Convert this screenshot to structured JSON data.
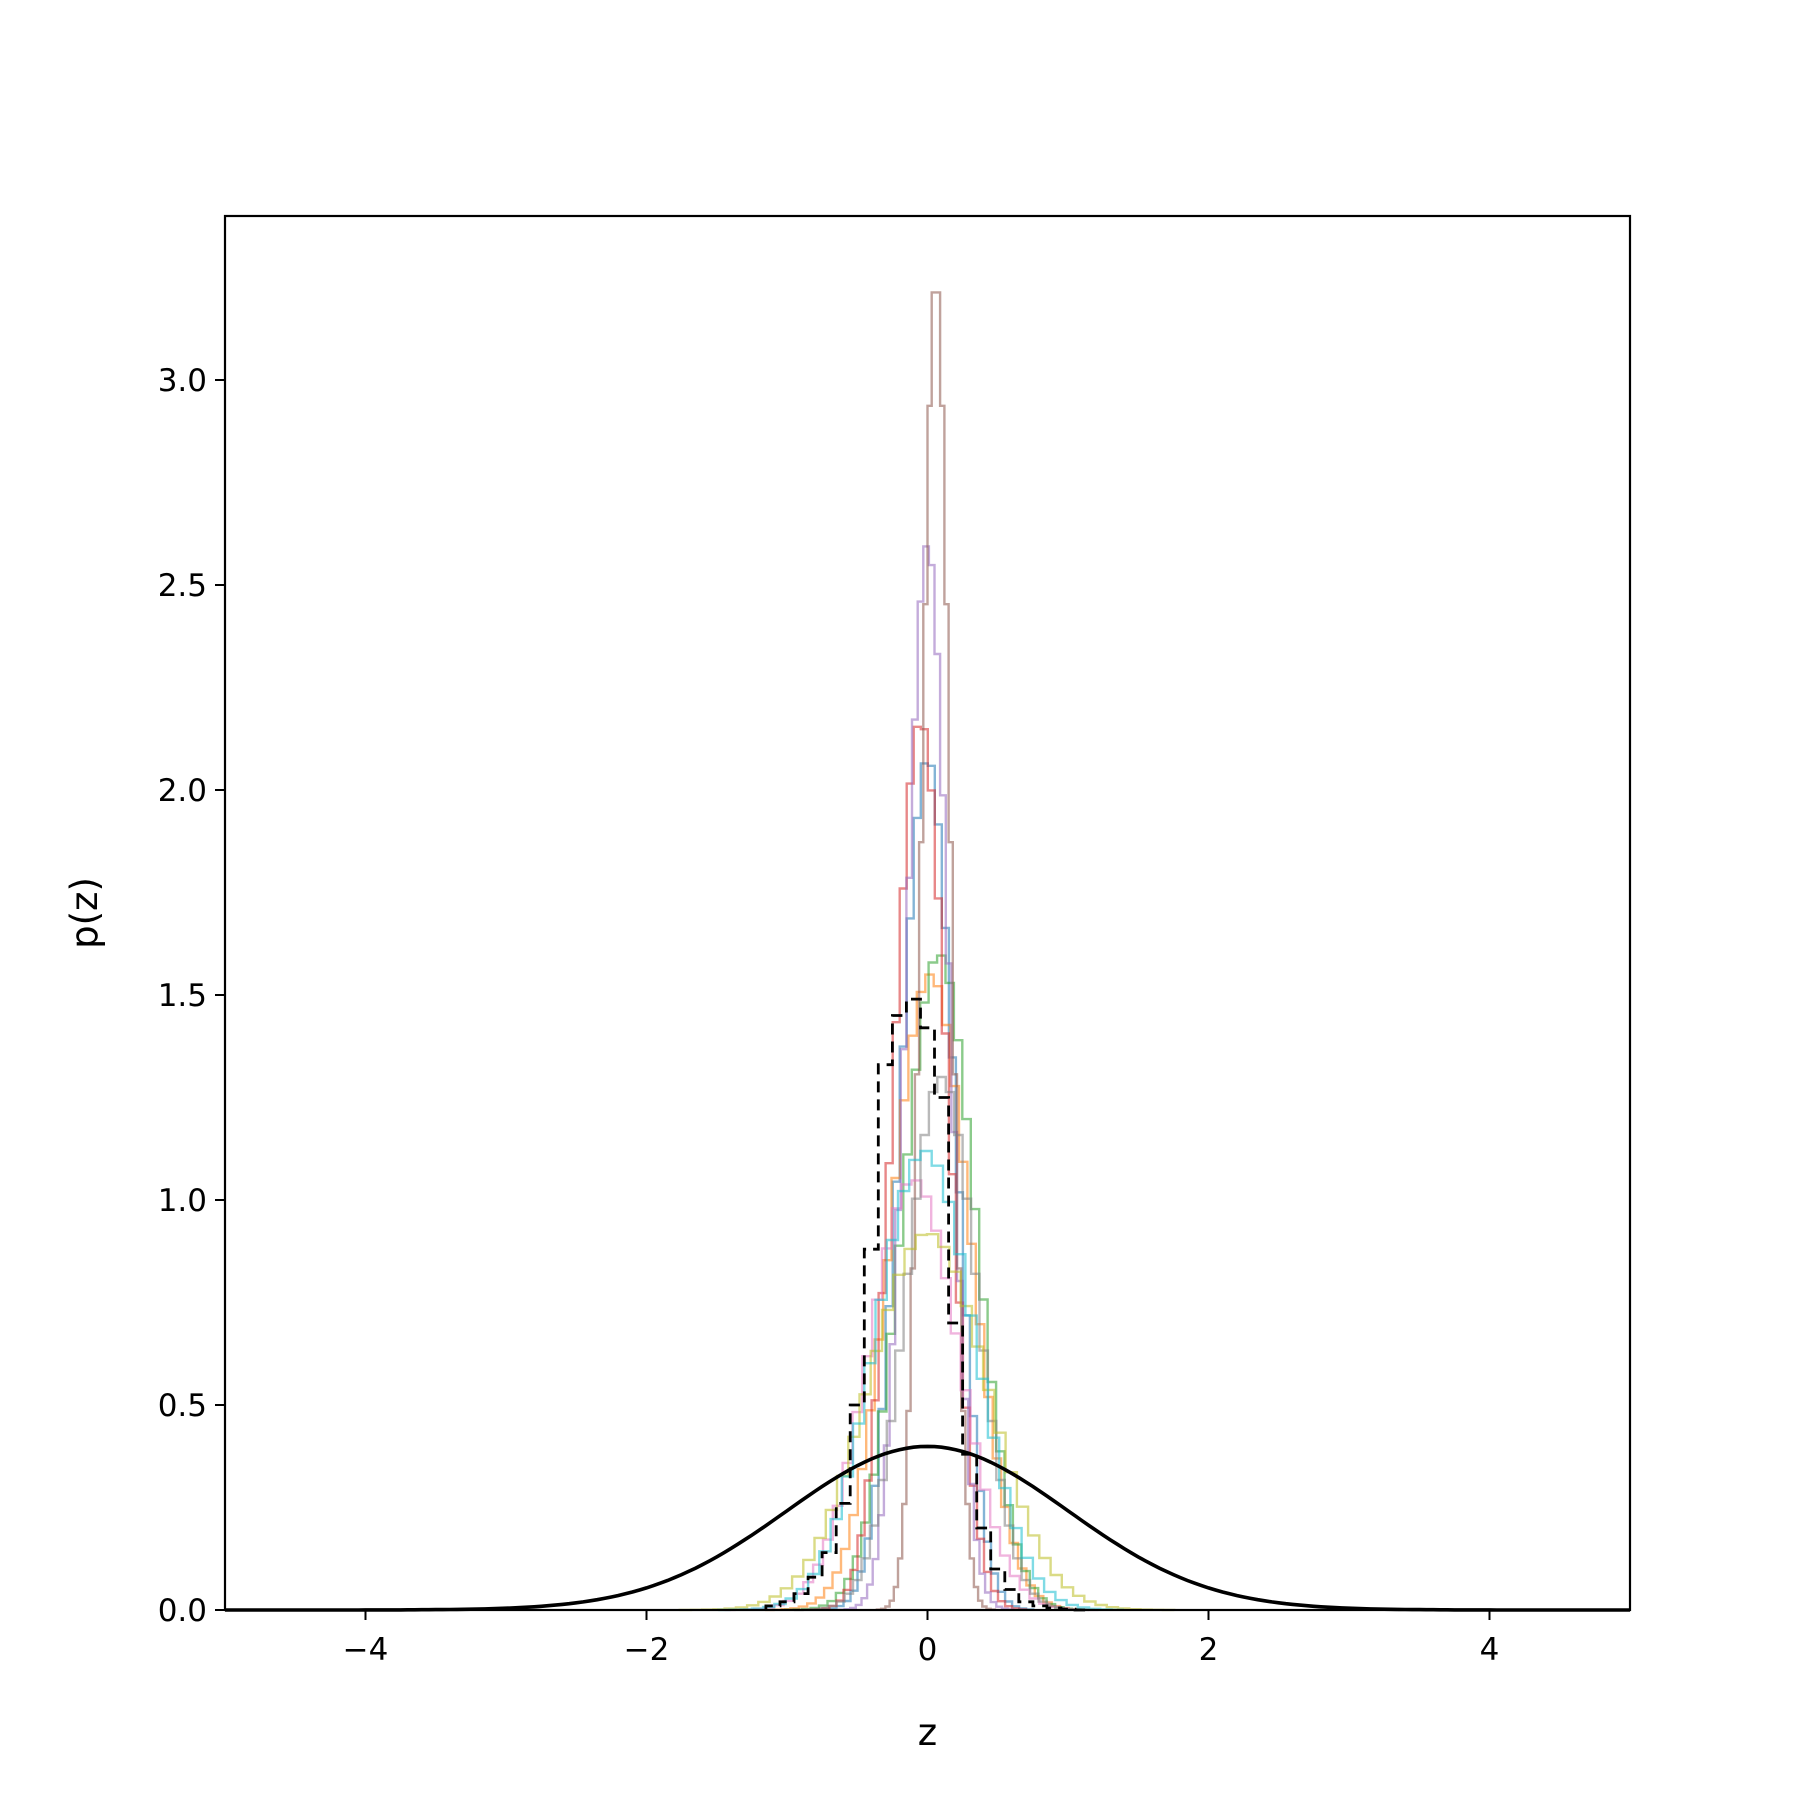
{
  "chart_data": {
    "type": "line",
    "title": "",
    "xlabel": "z",
    "ylabel": "p(z)",
    "xlim": [
      -5,
      5
    ],
    "ylim": [
      0,
      3.4
    ],
    "xticks": [
      -4,
      -2,
      0,
      2,
      4
    ],
    "xtick_labels": [
      "−4",
      "−2",
      "0",
      "2",
      "4"
    ],
    "yticks": [
      0.0,
      0.5,
      1.0,
      1.5,
      2.0,
      2.5,
      3.0
    ],
    "ytick_labels": [
      "0.0",
      "0.5",
      "1.0",
      "1.5",
      "2.0",
      "2.5",
      "3.0"
    ],
    "grid": false,
    "legend": "none",
    "reference_curve": {
      "style": "solid",
      "color": "#000000",
      "x": [
        -5.0,
        -4.5,
        -4.0,
        -3.5,
        -3.0,
        -2.5,
        -2.0,
        -1.5,
        -1.0,
        -0.5,
        0.0,
        0.5,
        1.0,
        1.5,
        2.0,
        2.5,
        3.0,
        3.5,
        4.0,
        4.5,
        5.0
      ],
      "y": [
        0.0,
        0.0,
        0.0001,
        0.0009,
        0.0044,
        0.0175,
        0.054,
        0.1295,
        0.242,
        0.352,
        0.399,
        0.352,
        0.242,
        0.1295,
        0.054,
        0.0175,
        0.0044,
        0.0009,
        0.0001,
        0.0,
        0.0
      ]
    },
    "mean_histogram": {
      "style": "dashed",
      "color": "#000000",
      "bin_edges": [
        -1.15,
        -1.05,
        -0.95,
        -0.85,
        -0.75,
        -0.65,
        -0.55,
        -0.45,
        -0.35,
        -0.25,
        -0.15,
        -0.05,
        0.05,
        0.15,
        0.25,
        0.35,
        0.45,
        0.55,
        0.65,
        0.75,
        0.85,
        0.95,
        1.05,
        1.15
      ],
      "values": [
        0.01,
        0.02,
        0.04,
        0.08,
        0.14,
        0.26,
        0.5,
        0.88,
        1.33,
        1.45,
        1.49,
        1.42,
        1.25,
        0.7,
        0.38,
        0.2,
        0.1,
        0.05,
        0.02,
        0.01,
        0.005,
        0.002,
        0.0
      ]
    },
    "series": [
      {
        "color": "#1f77b4",
        "mean": 0.0,
        "std": 0.19,
        "peak": 2.08,
        "bin_width": 0.05
      },
      {
        "color": "#ff7f0e",
        "mean": 0.02,
        "std": 0.28,
        "peak": 1.55,
        "bin_width": 0.06
      },
      {
        "color": "#2ca02c",
        "mean": 0.08,
        "std": 0.26,
        "peak": 1.6,
        "bin_width": 0.06
      },
      {
        "color": "#d62728",
        "mean": -0.05,
        "std": 0.19,
        "peak": 2.17,
        "bin_width": 0.05
      },
      {
        "color": "#9467bd",
        "mean": 0.0,
        "std": 0.15,
        "peak": 2.6,
        "bin_width": 0.04
      },
      {
        "color": "#8c564b",
        "mean": 0.06,
        "std": 0.1,
        "peak": 3.25,
        "bin_width": 0.03
      },
      {
        "color": "#e377c2",
        "mean": -0.1,
        "std": 0.32,
        "peak": 1.05,
        "bin_width": 0.07
      },
      {
        "color": "#7f7f7f",
        "mean": 0.1,
        "std": 0.25,
        "peak": 1.3,
        "bin_width": 0.06
      },
      {
        "color": "#bcbd22",
        "mean": 0.0,
        "std": 0.42,
        "peak": 0.92,
        "bin_width": 0.08
      },
      {
        "color": "#17becf",
        "mean": -0.02,
        "std": 0.35,
        "peak": 1.12,
        "bin_width": 0.08
      }
    ]
  }
}
